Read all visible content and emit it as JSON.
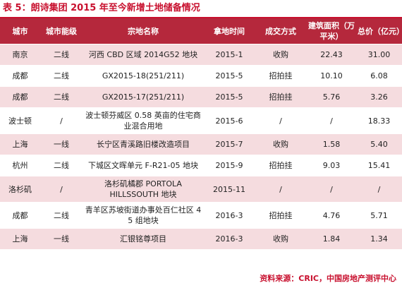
{
  "title": "表 5：朗诗集团 2015 年至今新增土地储备情况",
  "headers": {
    "city": "城市",
    "tier": "城市能级",
    "parcel": "宗地名称",
    "time": "拿地时间",
    "method": "成交方式",
    "area": "建筑面积（万平米）",
    "price": "总价（亿元）"
  },
  "rows": [
    {
      "city": "南京",
      "tier": "二线",
      "parcel": "河西 CBD 区域 2014G52 地块",
      "time": "2015-1",
      "method": "收购",
      "area": "22.43",
      "price": "31.00"
    },
    {
      "city": "成都",
      "tier": "二线",
      "parcel": "GX2015-18(251/211)",
      "time": "2015-5",
      "method": "招拍挂",
      "area": "10.10",
      "price": "6.08"
    },
    {
      "city": "成都",
      "tier": "二线",
      "parcel": "GX2015-17(251/211)",
      "time": "2015-5",
      "method": "招拍挂",
      "area": "5.76",
      "price": "3.26"
    },
    {
      "city": "波士顿",
      "tier": "/",
      "parcel": "波士顿芬威区 0.58 英亩的住宅商业混合用地",
      "time": "2015-6",
      "method": "/",
      "area": "/",
      "price": "18.33"
    },
    {
      "city": "上海",
      "tier": "一线",
      "parcel": "长宁区青溪路旧楼改造项目",
      "time": "2015-7",
      "method": "收购",
      "area": "1.58",
      "price": "5.40"
    },
    {
      "city": "杭州",
      "tier": "二线",
      "parcel": "下城区文晖单元 F-R21-05 地块",
      "time": "2015-9",
      "method": "招拍挂",
      "area": "9.03",
      "price": "15.41"
    },
    {
      "city": "洛杉矶",
      "tier": "/",
      "parcel": "洛杉矶橘郡 PORTOLA HILLSSOUTH 地块",
      "time": "2015-11",
      "method": "/",
      "area": "/",
      "price": "/"
    },
    {
      "city": "成都",
      "tier": "二线",
      "parcel": "青羊区苏坡街道办事处百仁社区 4 5 组地块",
      "time": "2016-3",
      "method": "招拍挂",
      "area": "4.76",
      "price": "5.71"
    },
    {
      "city": "上海",
      "tier": "一线",
      "parcel": "汇银铭尊项目",
      "time": "2016-3",
      "method": "收购",
      "area": "1.84",
      "price": "1.34"
    }
  ],
  "source": "资料来源：CRIC，中国房地产测评中心",
  "colors": {
    "accent": "#c8102e",
    "header_bg": "#b5283c",
    "row_pink": "#f5dcdf"
  }
}
